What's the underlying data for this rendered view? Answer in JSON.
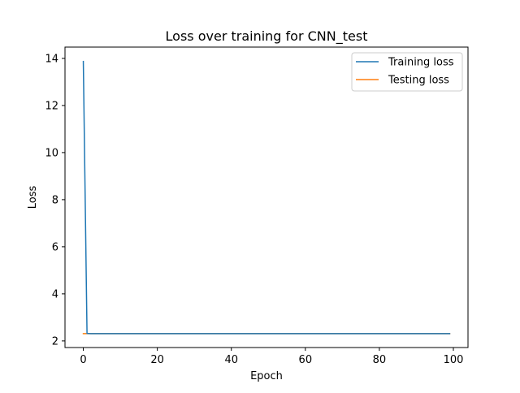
{
  "chart_data": {
    "type": "line",
    "title": "Loss over training for CNN_test",
    "xlabel": "Epoch",
    "ylabel": "Loss",
    "xlim": [
      -4.95,
      103.95
    ],
    "ylim": [
      1.72,
      14.48
    ],
    "xticks": [
      0,
      20,
      40,
      60,
      80,
      100
    ],
    "yticks": [
      2,
      4,
      6,
      8,
      10,
      12,
      14
    ],
    "grid": false,
    "legend_position": "top-right",
    "x": {
      "start": 0,
      "end": 99,
      "step": 1
    },
    "series": [
      {
        "name": "Training loss",
        "color": "#1f77b4",
        "values": [
          13.87,
          2.32,
          2.31,
          2.31,
          2.31,
          2.31,
          2.31,
          2.31,
          2.31,
          2.31,
          2.31,
          2.31,
          2.31,
          2.31,
          2.31,
          2.31,
          2.31,
          2.31,
          2.31,
          2.31,
          2.31,
          2.31,
          2.31,
          2.31,
          2.31,
          2.31,
          2.31,
          2.31,
          2.31,
          2.31,
          2.31,
          2.31,
          2.31,
          2.31,
          2.31,
          2.31,
          2.31,
          2.31,
          2.31,
          2.31,
          2.31,
          2.31,
          2.31,
          2.31,
          2.31,
          2.31,
          2.31,
          2.31,
          2.31,
          2.31,
          2.31,
          2.31,
          2.31,
          2.31,
          2.31,
          2.31,
          2.31,
          2.31,
          2.31,
          2.31,
          2.31,
          2.31,
          2.31,
          2.31,
          2.31,
          2.31,
          2.31,
          2.31,
          2.31,
          2.31,
          2.31,
          2.31,
          2.31,
          2.31,
          2.31,
          2.31,
          2.31,
          2.31,
          2.31,
          2.31,
          2.31,
          2.31,
          2.31,
          2.31,
          2.31,
          2.31,
          2.31,
          2.31,
          2.31,
          2.31,
          2.31,
          2.31,
          2.31,
          2.31,
          2.31,
          2.31,
          2.31,
          2.31,
          2.31,
          2.31
        ]
      },
      {
        "name": "Testing loss",
        "color": "#ff7f0e",
        "values": [
          2.31,
          2.31,
          2.31,
          2.31,
          2.31,
          2.31,
          2.31,
          2.31,
          2.31,
          2.31,
          2.31,
          2.31,
          2.31,
          2.31,
          2.31,
          2.31,
          2.31,
          2.31,
          2.31,
          2.31,
          2.31,
          2.31,
          2.31,
          2.31,
          2.31,
          2.31,
          2.31,
          2.31,
          2.31,
          2.31,
          2.31,
          2.31,
          2.31,
          2.31,
          2.31,
          2.31,
          2.31,
          2.31,
          2.31,
          2.31,
          2.31,
          2.31,
          2.31,
          2.31,
          2.31,
          2.31,
          2.31,
          2.31,
          2.31,
          2.31,
          2.31,
          2.31,
          2.31,
          2.31,
          2.31,
          2.31,
          2.31,
          2.31,
          2.31,
          2.31,
          2.31,
          2.31,
          2.31,
          2.31,
          2.31,
          2.31,
          2.31,
          2.31,
          2.31,
          2.31,
          2.31,
          2.31,
          2.31,
          2.31,
          2.31,
          2.31,
          2.31,
          2.31,
          2.31,
          2.31,
          2.31,
          2.31,
          2.31,
          2.31,
          2.31,
          2.31,
          2.31,
          2.31,
          2.31,
          2.31,
          2.31,
          2.31,
          2.31,
          2.31,
          2.31,
          2.31,
          2.31,
          2.31,
          2.31,
          2.31
        ]
      }
    ]
  }
}
